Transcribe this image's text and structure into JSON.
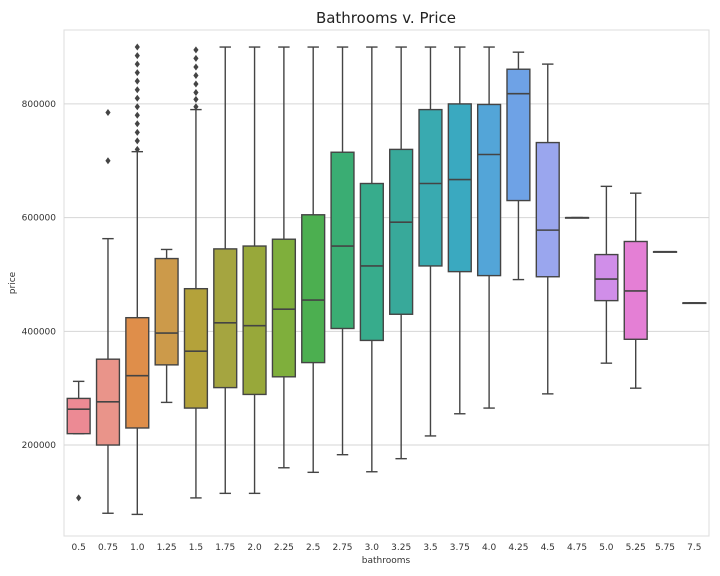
{
  "chart_data": {
    "type": "box",
    "title": "Bathrooms v. Price",
    "xlabel": "bathrooms",
    "ylabel": "price",
    "ylim": [
      40000,
      930000
    ],
    "yticks": [
      200000,
      400000,
      600000,
      800000
    ],
    "ytick_labels": [
      "200000",
      "400000",
      "600000",
      "800000"
    ],
    "grid": true,
    "categories": [
      "0.5",
      "0.75",
      "1.0",
      "1.25",
      "1.5",
      "1.75",
      "2.0",
      "2.25",
      "2.5",
      "2.75",
      "3.0",
      "3.25",
      "3.5",
      "3.75",
      "4.0",
      "4.25",
      "4.5",
      "4.75",
      "5.0",
      "5.25",
      "5.75",
      "7.5"
    ],
    "boxes": [
      {
        "category": "0.5",
        "whisker_low": 220000,
        "q1": 220000,
        "median": 263000,
        "q3": 282000,
        "whisker_high": 312000,
        "outliers": [
          107000
        ]
      },
      {
        "category": "0.75",
        "whisker_low": 80000,
        "q1": 200000,
        "median": 276000,
        "q3": 351000,
        "whisker_high": 563000,
        "outliers": [
          700000,
          785000
        ]
      },
      {
        "category": "1.0",
        "whisker_low": 78000,
        "q1": 230000,
        "median": 322000,
        "q3": 424000,
        "whisker_high": 716000,
        "outliers": [
          720000,
          735000,
          750000,
          765000,
          780000,
          795000,
          810000,
          825000,
          840000,
          855000,
          870000,
          885000,
          900000
        ]
      },
      {
        "category": "1.25",
        "whisker_low": 275000,
        "q1": 341000,
        "median": 397000,
        "q3": 528000,
        "whisker_high": 544000,
        "outliers": []
      },
      {
        "category": "1.5",
        "whisker_low": 107000,
        "q1": 265000,
        "median": 365000,
        "q3": 475000,
        "whisker_high": 790000,
        "outliers": [
          795000,
          808000,
          820000,
          835000,
          850000,
          865000,
          880000,
          895000
        ]
      },
      {
        "category": "1.75",
        "whisker_low": 115000,
        "q1": 301000,
        "median": 415000,
        "q3": 545000,
        "whisker_high": 900000,
        "outliers": []
      },
      {
        "category": "2.0",
        "whisker_low": 115000,
        "q1": 289000,
        "median": 410000,
        "q3": 550000,
        "whisker_high": 900000,
        "outliers": []
      },
      {
        "category": "2.25",
        "whisker_low": 160000,
        "q1": 320000,
        "median": 439000,
        "q3": 562000,
        "whisker_high": 900000,
        "outliers": []
      },
      {
        "category": "2.5",
        "whisker_low": 152000,
        "q1": 345000,
        "median": 455000,
        "q3": 605000,
        "whisker_high": 900000,
        "outliers": []
      },
      {
        "category": "2.75",
        "whisker_low": 183000,
        "q1": 405000,
        "median": 550000,
        "q3": 715000,
        "whisker_high": 900000,
        "outliers": []
      },
      {
        "category": "3.0",
        "whisker_low": 153000,
        "q1": 384000,
        "median": 515000,
        "q3": 660000,
        "whisker_high": 900000,
        "outliers": []
      },
      {
        "category": "3.25",
        "whisker_low": 176000,
        "q1": 430000,
        "median": 592000,
        "q3": 720000,
        "whisker_high": 900000,
        "outliers": []
      },
      {
        "category": "3.5",
        "whisker_low": 216000,
        "q1": 515000,
        "median": 660000,
        "q3": 790000,
        "whisker_high": 900000,
        "outliers": []
      },
      {
        "category": "3.75",
        "whisker_low": 255000,
        "q1": 505000,
        "median": 667000,
        "q3": 800000,
        "whisker_high": 900000,
        "outliers": []
      },
      {
        "category": "4.0",
        "whisker_low": 265000,
        "q1": 498000,
        "median": 711000,
        "q3": 799000,
        "whisker_high": 900000,
        "outliers": []
      },
      {
        "category": "4.25",
        "whisker_low": 491000,
        "q1": 630000,
        "median": 818000,
        "q3": 861000,
        "whisker_high": 891000,
        "outliers": []
      },
      {
        "category": "4.5",
        "whisker_low": 290000,
        "q1": 496000,
        "median": 578000,
        "q3": 732000,
        "whisker_high": 870000,
        "outliers": []
      },
      {
        "category": "4.75",
        "whisker_low": 600000,
        "q1": 600000,
        "median": 600000,
        "q3": 600000,
        "whisker_high": 600000,
        "outliers": []
      },
      {
        "category": "5.0",
        "whisker_low": 344000,
        "q1": 454000,
        "median": 492000,
        "q3": 535000,
        "whisker_high": 655000,
        "outliers": []
      },
      {
        "category": "5.25",
        "whisker_low": 300000,
        "q1": 386000,
        "median": 471000,
        "q3": 558000,
        "whisker_high": 643000,
        "outliers": []
      },
      {
        "category": "5.75",
        "whisker_low": 540000,
        "q1": 540000,
        "median": 540000,
        "q3": 540000,
        "whisker_high": 540000,
        "outliers": []
      },
      {
        "category": "7.5",
        "whisker_low": 450000,
        "q1": 450000,
        "median": 450000,
        "q3": 450000,
        "whisker_high": 450000,
        "outliers": []
      }
    ],
    "colors": [
      "#ec8a94",
      "#e9948a",
      "#df8e4a",
      "#cc9a4a",
      "#b4a23a",
      "#a5a540",
      "#98a83a",
      "#7faf3c",
      "#4caf50",
      "#3aad73",
      "#37ac8c",
      "#38a99a",
      "#39aab0",
      "#3aa9c0",
      "#53a5d8",
      "#6ea2e6",
      "#9aa6ee",
      "#b7a2ef",
      "#d08ee9",
      "#e47fd5",
      "#e886c3",
      "#eb8cb2"
    ]
  }
}
